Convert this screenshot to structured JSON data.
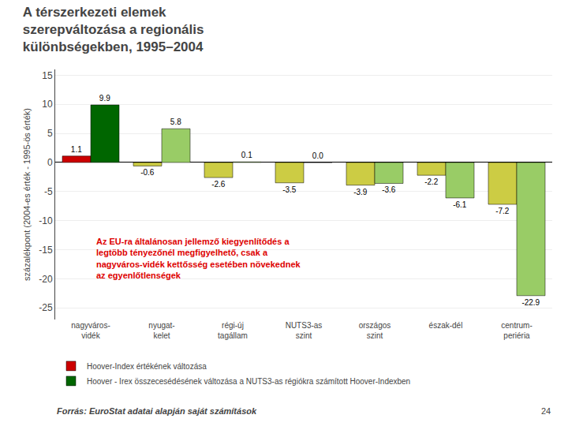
{
  "chart_data": {
    "type": "bar",
    "title": "A térszerkezeti elemek\nszerepváltozása a regionális\nkülönbségekben, 1995–2004",
    "categories": [
      "nagyváros-\nvidék",
      "nyugat-\nkelet",
      "régi-új\ntagállam",
      "NUTS3-as\nszint",
      "országos\nszint",
      "észak-dél",
      "centrum-\nperiéria"
    ],
    "series": [
      {
        "name": "Hoover-Index értékének változása",
        "colors": [
          "#cc0000",
          "#cccc44",
          "#cccc44",
          "#cccc44",
          "#cccc44",
          "#cccc44",
          "#cccc44"
        ],
        "values": [
          1.1,
          -0.6,
          -2.6,
          -3.5,
          -3.9,
          -2.2,
          -7.2
        ]
      },
      {
        "name": "Hoover - Irex összecesédésének változása a NUTS3-as régiókra számított Hoover-Indexben",
        "colors": [
          "#006600",
          "#99cc66",
          "#99cc66",
          "#99cc66",
          "#99cc66",
          "#99cc66",
          "#99cc66"
        ],
        "values": [
          9.9,
          5.8,
          0.1,
          0.0,
          -3.6,
          -6.1,
          -22.9
        ],
        "value_labels": [
          "9.9",
          "5.8",
          "0.1",
          "0.0",
          "-3.6",
          "-6.1",
          "-22.9"
        ]
      }
    ],
    "ylabel": "százalékpont (2004-es érték - 1995-ös érték)",
    "ylim": [
      -27,
      16
    ],
    "yticks": [
      15,
      10,
      5,
      0,
      -5,
      -10,
      -15,
      -20,
      -25
    ],
    "grid": true,
    "data_labels": true,
    "legend": "bottom",
    "annotation": "Az EU-ra általánosan jellemző kiegyenlítődés a\nlegtöbb tényezőnél megfigyelhető, csak a\nnagyváros-vidék kettősség esetében növekednek\naz egyenlőtlenségek",
    "source": "Forrás: EuroStat adatai alapján saját számítások",
    "slide_number": "24"
  }
}
